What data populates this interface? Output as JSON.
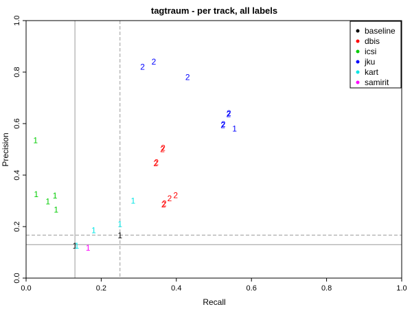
{
  "chart_data": {
    "type": "scatter",
    "title": "tagtraum - per track, all labels",
    "xlabel": "Recall",
    "ylabel": "Precision",
    "xlim": [
      0,
      1
    ],
    "ylim": [
      0,
      1
    ],
    "xticks": [
      "0.0",
      "0.2",
      "0.4",
      "0.6",
      "0.8",
      "1.0"
    ],
    "yticks": [
      "0.0",
      "0.2",
      "0.4",
      "0.6",
      "0.8",
      "1.0"
    ],
    "legend_position": "top-right",
    "reference_lines": [
      {
        "orientation": "vertical",
        "value": 0.13,
        "style": "solid",
        "color": "#999999"
      },
      {
        "orientation": "horizontal",
        "value": 0.13,
        "style": "solid",
        "color": "#999999"
      },
      {
        "orientation": "vertical",
        "value": 0.25,
        "style": "dashed",
        "color": "#999999"
      },
      {
        "orientation": "horizontal",
        "value": 0.167,
        "style": "dashed",
        "color": "#999999"
      }
    ],
    "series": [
      {
        "name": "baseline",
        "color": "#000000",
        "points": [
          {
            "x": 0.13,
            "y": 0.125,
            "label": "1"
          },
          {
            "x": 0.25,
            "y": 0.165,
            "label": "1"
          }
        ]
      },
      {
        "name": "dbis",
        "color": "#ff0000",
        "points": [
          {
            "x": 0.365,
            "y": 0.505,
            "label": "2"
          },
          {
            "x": 0.363,
            "y": 0.5,
            "label": "2"
          },
          {
            "x": 0.347,
            "y": 0.45,
            "label": "2"
          },
          {
            "x": 0.345,
            "y": 0.445,
            "label": "2"
          },
          {
            "x": 0.368,
            "y": 0.29,
            "label": "2"
          },
          {
            "x": 0.366,
            "y": 0.285,
            "label": "2"
          },
          {
            "x": 0.382,
            "y": 0.31,
            "label": "2"
          },
          {
            "x": 0.398,
            "y": 0.322,
            "label": "2"
          }
        ]
      },
      {
        "name": "icsi",
        "color": "#00cc00",
        "points": [
          {
            "x": 0.025,
            "y": 0.535,
            "label": "1"
          },
          {
            "x": 0.027,
            "y": 0.325,
            "label": "1"
          },
          {
            "x": 0.077,
            "y": 0.32,
            "label": "1"
          },
          {
            "x": 0.058,
            "y": 0.297,
            "label": "1"
          },
          {
            "x": 0.08,
            "y": 0.265,
            "label": "1"
          }
        ]
      },
      {
        "name": "jku",
        "color": "#0000ff",
        "points": [
          {
            "x": 0.31,
            "y": 0.82,
            "label": "2"
          },
          {
            "x": 0.34,
            "y": 0.84,
            "label": "2"
          },
          {
            "x": 0.43,
            "y": 0.78,
            "label": "2"
          },
          {
            "x": 0.54,
            "y": 0.64,
            "label": "2"
          },
          {
            "x": 0.539,
            "y": 0.636,
            "label": "2"
          },
          {
            "x": 0.525,
            "y": 0.598,
            "label": "2"
          },
          {
            "x": 0.524,
            "y": 0.593,
            "label": "2"
          },
          {
            "x": 0.555,
            "y": 0.58,
            "label": "1"
          }
        ]
      },
      {
        "name": "kart",
        "color": "#00e5e5",
        "points": [
          {
            "x": 0.285,
            "y": 0.3,
            "label": "1"
          },
          {
            "x": 0.25,
            "y": 0.21,
            "label": "1"
          },
          {
            "x": 0.18,
            "y": 0.185,
            "label": "1"
          },
          {
            "x": 0.135,
            "y": 0.125,
            "label": "1"
          }
        ]
      },
      {
        "name": "samirit",
        "color": "#ff00ff",
        "points": [
          {
            "x": 0.165,
            "y": 0.118,
            "label": "1"
          }
        ]
      }
    ]
  }
}
